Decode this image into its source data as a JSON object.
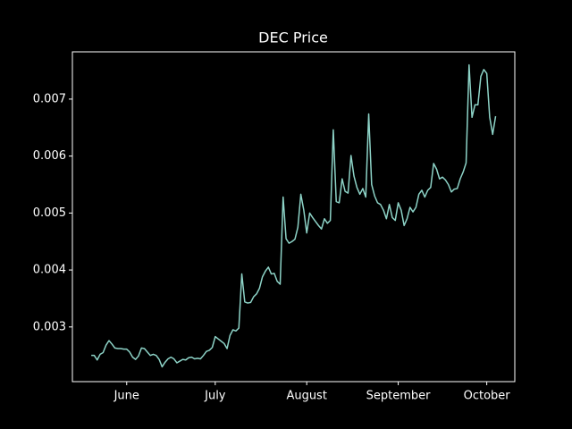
{
  "chart_data": {
    "type": "line",
    "title": "DEC Price",
    "x": [
      0,
      1,
      2,
      3,
      4,
      5,
      6,
      7,
      8,
      9,
      10,
      11,
      12,
      13,
      14,
      15,
      16,
      17,
      18,
      19,
      20,
      21,
      22,
      23,
      24,
      25,
      26,
      27,
      28,
      29,
      30,
      31,
      32,
      33,
      34,
      35,
      36,
      37,
      38,
      39,
      40,
      41,
      42,
      43,
      44,
      45,
      46,
      47,
      48,
      49,
      50,
      51,
      52,
      53,
      54,
      55,
      56,
      57,
      58,
      59,
      60,
      61,
      62,
      63,
      64,
      65,
      66,
      67,
      68,
      69,
      70,
      71,
      72,
      73,
      74,
      75,
      76,
      77,
      78,
      79,
      80,
      81,
      82,
      83,
      84,
      85,
      86,
      87,
      88,
      89,
      90,
      91,
      92,
      93,
      94,
      95,
      96,
      97,
      98,
      99,
      100,
      101,
      102,
      103,
      104,
      105,
      106,
      107,
      108,
      109,
      110,
      111,
      112,
      113,
      114,
      115,
      116,
      117,
      118,
      119,
      120,
      121,
      122,
      123,
      124,
      125,
      126,
      127,
      128,
      129,
      130,
      131,
      132,
      133,
      134,
      135,
      136,
      137
    ],
    "series": [
      {
        "color": "#8dd3c7",
        "values": [
          0.0025,
          0.0025,
          0.00242,
          0.00252,
          0.00255,
          0.00268,
          0.00276,
          0.0027,
          0.00263,
          0.00262,
          0.00262,
          0.00261,
          0.00261,
          0.00256,
          0.00247,
          0.00243,
          0.00249,
          0.00263,
          0.00262,
          0.00256,
          0.0025,
          0.00252,
          0.0025,
          0.00243,
          0.0023,
          0.00238,
          0.00244,
          0.00247,
          0.00244,
          0.00237,
          0.0024,
          0.00243,
          0.00242,
          0.00246,
          0.00247,
          0.00244,
          0.00245,
          0.00244,
          0.0025,
          0.00257,
          0.00259,
          0.00264,
          0.00283,
          0.00279,
          0.00275,
          0.00271,
          0.00262,
          0.00285,
          0.00295,
          0.00293,
          0.00298,
          0.00393,
          0.00344,
          0.00342,
          0.00343,
          0.00353,
          0.00358,
          0.00368,
          0.00388,
          0.00398,
          0.00405,
          0.00393,
          0.00394,
          0.0038,
          0.00375,
          0.00528,
          0.00455,
          0.00447,
          0.0045,
          0.00454,
          0.00475,
          0.00533,
          0.00505,
          0.00465,
          0.005,
          0.00492,
          0.00485,
          0.00478,
          0.00472,
          0.0049,
          0.00482,
          0.00487,
          0.00646,
          0.0052,
          0.00518,
          0.0056,
          0.00538,
          0.00535,
          0.00601,
          0.00565,
          0.00545,
          0.00533,
          0.00543,
          0.00528,
          0.00674,
          0.0055,
          0.0053,
          0.00518,
          0.00515,
          0.00505,
          0.0049,
          0.00515,
          0.00492,
          0.00487,
          0.00518,
          0.00505,
          0.00478,
          0.0049,
          0.0051,
          0.00502,
          0.0051,
          0.00533,
          0.0054,
          0.00528,
          0.0054,
          0.00545,
          0.00587,
          0.00577,
          0.0056,
          0.00563,
          0.00558,
          0.0055,
          0.00537,
          0.00542,
          0.00543,
          0.0056,
          0.00572,
          0.00588,
          0.0076,
          0.00668,
          0.0069,
          0.0069,
          0.0074,
          0.00752,
          0.00745,
          0.00668,
          0.00638,
          0.0067
        ]
      }
    ],
    "xlim": [
      -6.4,
      143.5
    ],
    "xticks": [
      {
        "value": 12,
        "label": "June"
      },
      {
        "value": 42,
        "label": "July"
      },
      {
        "value": 73,
        "label": "August"
      },
      {
        "value": 104,
        "label": "September"
      },
      {
        "value": 134,
        "label": "October"
      }
    ],
    "ylim": [
      0.00204,
      0.00783
    ],
    "yticks": [
      0.003,
      0.004,
      0.005,
      0.006,
      0.007
    ]
  }
}
